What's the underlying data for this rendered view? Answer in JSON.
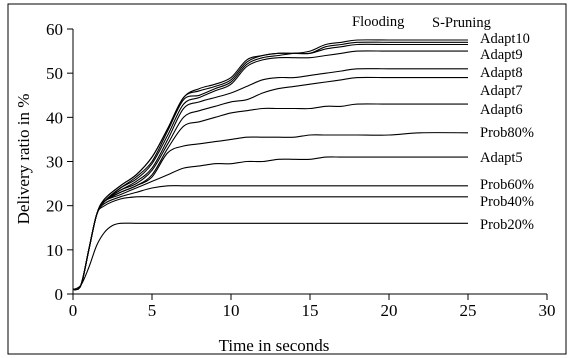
{
  "chart_data": {
    "type": "line",
    "title": "",
    "xlabel": "Time in seconds",
    "ylabel": "Delivery ratio in %",
    "xlim": [
      0,
      30
    ],
    "ylim": [
      0,
      60
    ],
    "xticks": [
      0,
      5,
      10,
      15,
      20,
      25,
      30
    ],
    "yticks": [
      0,
      10,
      20,
      30,
      40,
      50,
      60
    ],
    "grid": false,
    "legend": "labels at line ends",
    "line_color": "#000000",
    "series": [
      {
        "name": "Flooding",
        "x": [
          0,
          0.5,
          1,
          1.5,
          2,
          3,
          4,
          5,
          6,
          7,
          8,
          9,
          10,
          11,
          12,
          13,
          14,
          15,
          16,
          17,
          18,
          20,
          22,
          25
        ],
        "y": [
          1,
          2,
          10,
          18,
          21.5,
          24.5,
          27,
          31,
          37.5,
          44.5,
          46.5,
          47.5,
          49,
          53,
          54,
          54.5,
          54.5,
          55,
          56.5,
          57,
          57.5,
          57.5,
          57.5,
          57.5
        ]
      },
      {
        "name": "S-Pruning",
        "x": [
          0,
          0.5,
          1,
          1.5,
          2,
          3,
          4,
          5,
          6,
          7,
          8,
          9,
          10,
          11,
          12,
          13,
          14,
          15,
          16,
          17,
          18,
          20,
          22,
          25
        ],
        "y": [
          1,
          2,
          10,
          18,
          21.5,
          24.5,
          27,
          31,
          37.5,
          44.5,
          46,
          47,
          48.5,
          52.5,
          54,
          54.5,
          54.5,
          54.5,
          56,
          56.5,
          57,
          57,
          57,
          57
        ]
      },
      {
        "name": "Adapt10",
        "x": [
          0,
          0.5,
          1,
          1.5,
          2,
          3,
          4,
          5,
          6,
          7,
          8,
          9,
          10,
          11,
          12,
          13,
          14,
          15,
          16,
          17,
          18,
          20,
          22,
          25
        ],
        "y": [
          1,
          2,
          10,
          18,
          21,
          24,
          26.5,
          30,
          37,
          44,
          45,
          46.5,
          48,
          52,
          53.5,
          54,
          54.5,
          54.5,
          55.5,
          56,
          56.5,
          56.5,
          56.5,
          56.5
        ]
      },
      {
        "name": "Adapt9",
        "x": [
          0,
          0.5,
          1,
          1.5,
          2,
          3,
          4,
          5,
          6,
          7,
          8,
          9,
          10,
          11,
          12,
          13,
          14,
          15,
          16,
          17,
          18,
          20,
          22,
          25
        ],
        "y": [
          1,
          2,
          10,
          18,
          21,
          24,
          26,
          29.5,
          36,
          43,
          44.5,
          46,
          47.5,
          51.5,
          53,
          53.5,
          53.5,
          53.5,
          54,
          54.5,
          55,
          55,
          55,
          55
        ]
      },
      {
        "name": "Adapt8",
        "x": [
          0,
          0.5,
          1,
          1.5,
          2,
          3,
          4,
          5,
          6,
          7,
          8,
          9,
          10,
          11,
          12,
          13,
          14,
          15,
          16,
          17,
          18,
          20,
          22,
          25
        ],
        "y": [
          1,
          2,
          10,
          18,
          21,
          23.5,
          25.5,
          28.5,
          35,
          42,
          43.5,
          44.5,
          45.5,
          47,
          48.5,
          49,
          49,
          49.5,
          50,
          50.5,
          51,
          51,
          51,
          51
        ]
      },
      {
        "name": "Adapt7",
        "x": [
          0,
          0.5,
          1,
          1.5,
          2,
          3,
          4,
          5,
          6,
          7,
          8,
          9,
          10,
          11,
          12,
          13,
          14,
          15,
          16,
          17,
          18,
          20,
          22,
          25
        ],
        "y": [
          1,
          2,
          10,
          18,
          21,
          23.5,
          25,
          28,
          34,
          40,
          41.5,
          42.5,
          43.5,
          44,
          45.5,
          46.5,
          47,
          47.5,
          48,
          48.5,
          49,
          49,
          49,
          49
        ]
      },
      {
        "name": "Adapt6",
        "x": [
          0,
          0.5,
          1,
          1.5,
          2,
          3,
          4,
          5,
          6,
          7,
          8,
          9,
          10,
          11,
          12,
          13,
          14,
          15,
          16,
          17,
          18,
          20,
          22,
          25
        ],
        "y": [
          1,
          2,
          10,
          18,
          21,
          23,
          24.5,
          27,
          33,
          38,
          39,
          40,
          41,
          41.5,
          42,
          42,
          42,
          42,
          42.5,
          42.5,
          43,
          43,
          43,
          43
        ]
      },
      {
        "name": "Prob80%",
        "x": [
          0,
          0.5,
          1,
          1.5,
          2,
          3,
          4,
          5,
          6,
          7,
          8,
          9,
          10,
          11,
          12,
          13,
          14,
          15,
          16,
          17,
          18,
          20,
          22,
          25
        ],
        "y": [
          1,
          2,
          10,
          18,
          21,
          23,
          24.5,
          26.5,
          32,
          33.5,
          34,
          34.5,
          35,
          35.5,
          35.5,
          35.5,
          35.5,
          36,
          36,
          36,
          36,
          36,
          36.5,
          36.5
        ]
      },
      {
        "name": "Adapt5",
        "x": [
          0,
          0.5,
          1,
          1.5,
          2,
          3,
          4,
          5,
          6,
          7,
          8,
          9,
          10,
          11,
          12,
          13,
          14,
          15,
          16,
          17,
          18,
          20,
          22,
          25
        ],
        "y": [
          1,
          2,
          10,
          18,
          21,
          22.5,
          24,
          25.5,
          27,
          28.5,
          29,
          29.5,
          29.5,
          30,
          30,
          30.5,
          30.5,
          30.5,
          31,
          31,
          31,
          31,
          31,
          31
        ]
      },
      {
        "name": "Prob60%",
        "x": [
          0,
          0.5,
          1,
          1.5,
          2,
          3,
          4,
          5,
          6,
          7,
          8,
          9,
          10,
          11,
          12,
          13,
          14,
          15,
          16,
          17,
          18,
          20,
          22,
          25
        ],
        "y": [
          1,
          2,
          10,
          18,
          20.5,
          22,
          23,
          24,
          24.5,
          24.5,
          24.5,
          24.5,
          24.5,
          24.5,
          24.5,
          24.5,
          24.5,
          24.5,
          24.5,
          24.5,
          24.5,
          24.5,
          24.5,
          24.5
        ]
      },
      {
        "name": "Prob40%",
        "x": [
          0,
          0.5,
          1,
          1.5,
          2,
          3,
          4,
          5,
          6,
          7,
          8,
          9,
          10,
          11,
          12,
          13,
          14,
          15,
          16,
          17,
          18,
          20,
          22,
          25
        ],
        "y": [
          1,
          2,
          10,
          18,
          20,
          21.5,
          22,
          22,
          22,
          22,
          22,
          22,
          22,
          22,
          22,
          22,
          22,
          22,
          22,
          22,
          22,
          22,
          22,
          22
        ]
      },
      {
        "name": "Prob20%",
        "x": [
          0,
          0.5,
          1,
          1.5,
          2,
          2.5,
          3,
          4,
          5,
          6,
          8,
          10,
          12,
          15,
          18,
          20,
          22,
          25
        ],
        "y": [
          1,
          2,
          6,
          11,
          14,
          15.5,
          16,
          16,
          16,
          16,
          16,
          16,
          16,
          16,
          16,
          16,
          16,
          16
        ]
      }
    ]
  }
}
